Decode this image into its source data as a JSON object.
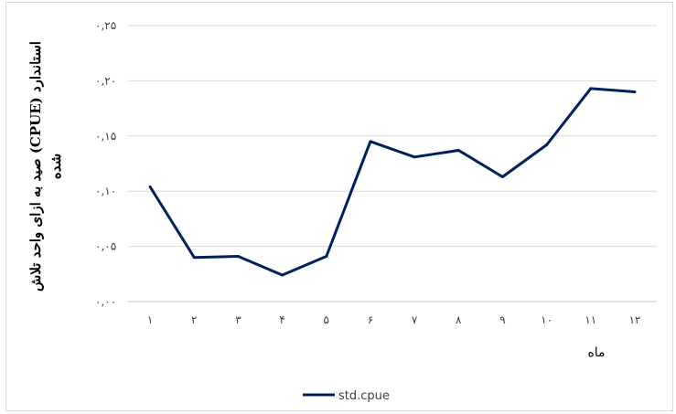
{
  "chart_data": {
    "type": "line",
    "x": [
      "۱",
      "۲",
      "۳",
      "۴",
      "۵",
      "۶",
      "۷",
      "۸",
      "۹",
      "۱۰",
      "۱۱",
      "۱۲"
    ],
    "series": [
      {
        "name": "std.cpue",
        "color": "#002060",
        "values": [
          0.104,
          0.04,
          0.041,
          0.024,
          0.041,
          0.145,
          0.131,
          0.137,
          0.113,
          0.142,
          0.193,
          0.19
        ]
      }
    ],
    "yticks": [
      0,
      0.05,
      0.1,
      0.15,
      0.2,
      0.25
    ],
    "ytick_labels": [
      "۰,۰۰",
      "۰,۰۵",
      "۰,۱۰",
      "۰,۱۵",
      "۰,۲۰",
      "۰,۲۵"
    ],
    "ylim": [
      0,
      0.25
    ],
    "ylabel_line1": "صید به ازای واحد تلاش (CPUE) استاندارد",
    "ylabel_line2": "شده",
    "xlabel": "ماه",
    "grid": true,
    "legend_position": "bottom"
  }
}
